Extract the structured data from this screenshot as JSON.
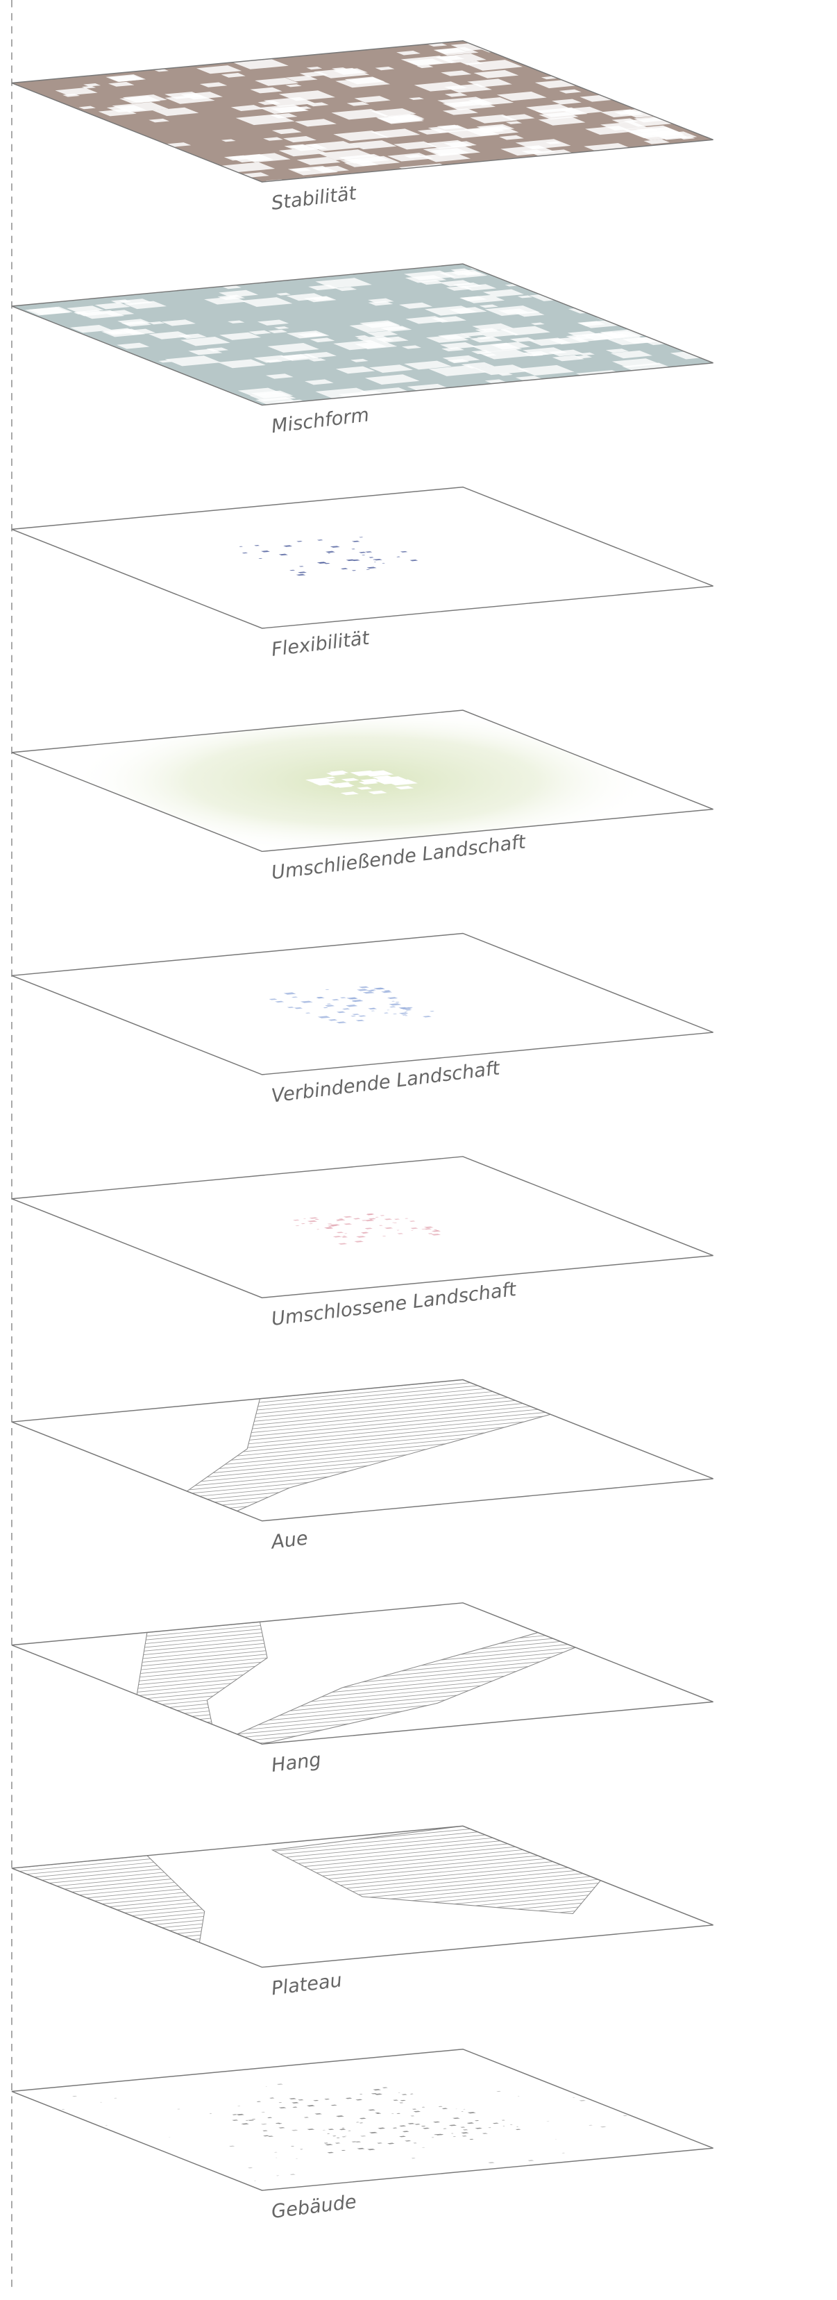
{
  "layers": [
    {
      "label": "Stabilität"
    },
    {
      "label": "Mischform"
    },
    {
      "label": "Flexibilität"
    },
    {
      "label": "Umschließende Landschaft"
    },
    {
      "label": "Verbindende Landschaft"
    },
    {
      "label": "Umschlossene Landschaft"
    },
    {
      "label": "Aue"
    },
    {
      "label": "Hang"
    },
    {
      "label": "Plateau"
    },
    {
      "label": "Gebäude"
    }
  ]
}
